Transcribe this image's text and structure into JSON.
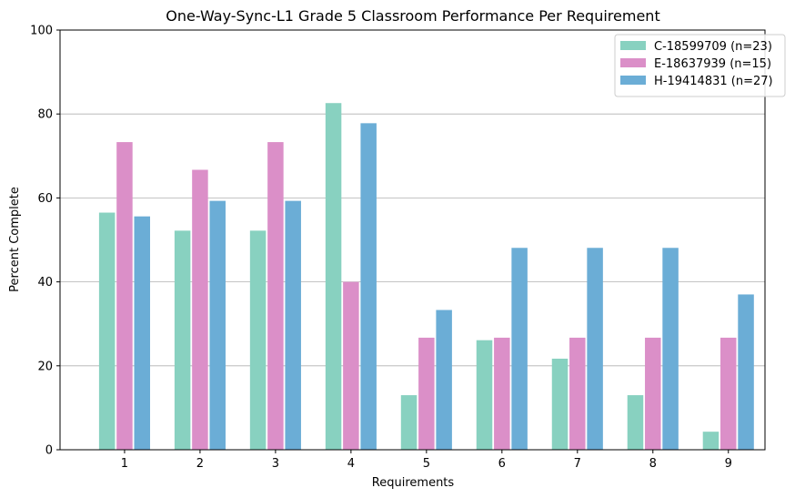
{
  "chart_data": {
    "type": "bar",
    "title": "One-Way-Sync-L1 Grade 5 Classroom Performance Per Requirement",
    "xlabel": "Requirements",
    "ylabel": "Percent Complete",
    "categories": [
      "1",
      "2",
      "3",
      "4",
      "5",
      "6",
      "7",
      "8",
      "9"
    ],
    "ylim": [
      0,
      100
    ],
    "yticks": [
      "0",
      "20",
      "40",
      "60",
      "80",
      "100"
    ],
    "grid": "horizontal",
    "legend_position": "top-right",
    "series": [
      {
        "name": "C-18599709 (n=23)",
        "color": "#88d1c0",
        "values": [
          56.5,
          52.2,
          52.2,
          82.6,
          13.0,
          26.1,
          21.7,
          13.0,
          4.3
        ]
      },
      {
        "name": "E-18637939 (n=15)",
        "color": "#db8fc8",
        "values": [
          73.3,
          66.7,
          73.3,
          40.0,
          26.7,
          26.7,
          26.7,
          26.7,
          26.7
        ]
      },
      {
        "name": "H-19414831 (n=27)",
        "color": "#6badd6",
        "values": [
          55.6,
          59.3,
          59.3,
          77.8,
          33.3,
          48.1,
          48.1,
          48.1,
          37.0
        ]
      }
    ]
  }
}
